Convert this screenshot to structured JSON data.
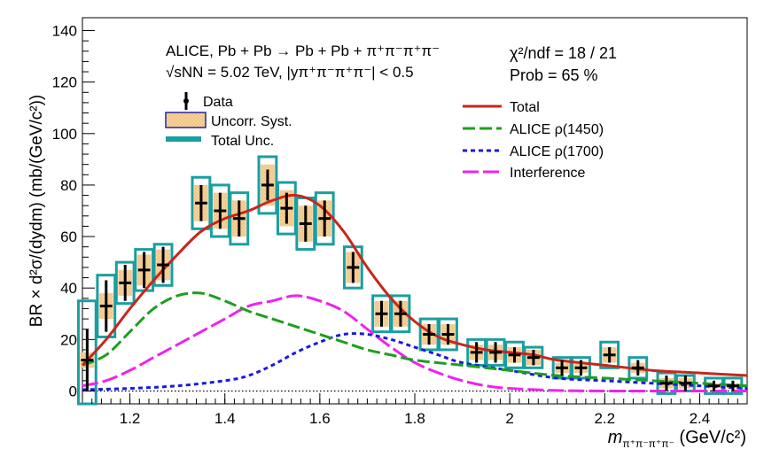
{
  "chart_data": {
    "type": "scatter",
    "title": "",
    "xlabel": "m",
    "xlabel_sub": "π⁺π⁻π⁺π⁻",
    "xlabel_unit": " (GeV/c²)",
    "ylabel": "BR × d²σ/(dydm) (mb/(GeV/c²))",
    "xlim": [
      1.1,
      2.5
    ],
    "ylim": [
      -5,
      145
    ],
    "x_ticks": [
      1.2,
      1.4,
      1.6,
      1.8,
      2.0,
      2.2,
      2.4
    ],
    "x_tick_labels": [
      "1.2",
      "1.4",
      "1.6",
      "1.8",
      "2",
      "2.2",
      "2.4"
    ],
    "y_ticks": [
      0,
      20,
      40,
      60,
      80,
      100,
      120,
      140
    ],
    "y_tick_labels": [
      "0",
      "20",
      "40",
      "60",
      "80",
      "100",
      "120",
      "140"
    ],
    "annotations": {
      "line1": "ALICE, Pb + Pb → Pb + Pb + π⁺π⁻π⁺π⁻",
      "line2": "√sNN = 5.02 TeV, |yπ⁺π⁻π⁺π⁻| < 0.5",
      "chi2": "χ²/ndf = 18 / 21",
      "prob": "Prob = 65 %"
    },
    "legend_left": [
      "Data",
      "Uncorr. Syst.",
      "Total Unc."
    ],
    "legend_right": [
      "Total",
      "ALICE ρ(1450)",
      "ALICE ρ(1700)",
      "Interference"
    ],
    "colors": {
      "total": "#c8261d",
      "rho1450": "#1e9e1e",
      "rho1700": "#1a1ae0",
      "interference": "#ee22ee",
      "total_unc": "#1a9ea0",
      "syst_fill": "#f6d29a"
    },
    "data_points": [
      {
        "x": 1.11,
        "y": 12,
        "stat": 12,
        "syst": 3,
        "tot": 23
      },
      {
        "x": 1.15,
        "y": 33,
        "stat": 10,
        "syst": 5,
        "tot": 12
      },
      {
        "x": 1.19,
        "y": 42,
        "stat": 7,
        "syst": 5,
        "tot": 8
      },
      {
        "x": 1.23,
        "y": 47,
        "stat": 7,
        "syst": 6,
        "tot": 8
      },
      {
        "x": 1.27,
        "y": 49,
        "stat": 7,
        "syst": 6,
        "tot": 8
      },
      {
        "x": 1.35,
        "y": 73,
        "stat": 7,
        "syst": 7,
        "tot": 10
      },
      {
        "x": 1.39,
        "y": 70,
        "stat": 7,
        "syst": 7,
        "tot": 10
      },
      {
        "x": 1.43,
        "y": 67,
        "stat": 7,
        "syst": 7,
        "tot": 10
      },
      {
        "x": 1.49,
        "y": 80,
        "stat": 6,
        "syst": 8,
        "tot": 11
      },
      {
        "x": 1.53,
        "y": 71,
        "stat": 6,
        "syst": 7,
        "tot": 10
      },
      {
        "x": 1.57,
        "y": 65,
        "stat": 7,
        "syst": 7,
        "tot": 10
      },
      {
        "x": 1.61,
        "y": 67,
        "stat": 7,
        "syst": 7,
        "tot": 10
      },
      {
        "x": 1.67,
        "y": 48,
        "stat": 6,
        "syst": 6,
        "tot": 8
      },
      {
        "x": 1.73,
        "y": 30,
        "stat": 5,
        "syst": 5,
        "tot": 7
      },
      {
        "x": 1.77,
        "y": 30,
        "stat": 5,
        "syst": 5,
        "tot": 7
      },
      {
        "x": 1.83,
        "y": 22,
        "stat": 4,
        "syst": 4,
        "tot": 6
      },
      {
        "x": 1.87,
        "y": 22,
        "stat": 4,
        "syst": 4,
        "tot": 6
      },
      {
        "x": 1.93,
        "y": 15,
        "stat": 4,
        "syst": 3,
        "tot": 5
      },
      {
        "x": 1.97,
        "y": 15,
        "stat": 4,
        "syst": 3,
        "tot": 5
      },
      {
        "x": 2.01,
        "y": 14,
        "stat": 3,
        "syst": 3,
        "tot": 5
      },
      {
        "x": 2.05,
        "y": 13,
        "stat": 3,
        "syst": 3,
        "tot": 4
      },
      {
        "x": 2.11,
        "y": 9,
        "stat": 3,
        "syst": 2,
        "tot": 4
      },
      {
        "x": 2.15,
        "y": 9,
        "stat": 3,
        "syst": 2,
        "tot": 4
      },
      {
        "x": 2.21,
        "y": 14,
        "stat": 3,
        "syst": 3,
        "tot": 5
      },
      {
        "x": 2.27,
        "y": 9,
        "stat": 3,
        "syst": 2,
        "tot": 4
      },
      {
        "x": 2.33,
        "y": 3,
        "stat": 3,
        "syst": 2,
        "tot": 4
      },
      {
        "x": 2.37,
        "y": 3,
        "stat": 3,
        "syst": 2,
        "tot": 3
      },
      {
        "x": 2.43,
        "y": 2,
        "stat": 2,
        "syst": 1,
        "tot": 3
      },
      {
        "x": 2.47,
        "y": 2,
        "stat": 2,
        "syst": 1,
        "tot": 3
      }
    ],
    "series": [
      {
        "name": "Total",
        "x": [
          1.1,
          1.15,
          1.2,
          1.25,
          1.3,
          1.35,
          1.4,
          1.45,
          1.5,
          1.55,
          1.6,
          1.65,
          1.7,
          1.75,
          1.8,
          1.85,
          1.9,
          1.95,
          2.0,
          2.05,
          2.1,
          2.2,
          2.3,
          2.4,
          2.5
        ],
        "y": [
          10,
          20,
          32,
          43,
          53,
          62,
          67,
          70,
          74,
          76,
          72,
          62,
          48,
          36,
          27,
          21,
          18,
          16,
          15,
          14,
          12,
          10,
          8,
          7,
          6
        ]
      },
      {
        "name": "ALICE ρ(1450)",
        "x": [
          1.1,
          1.15,
          1.2,
          1.25,
          1.3,
          1.35,
          1.4,
          1.45,
          1.5,
          1.55,
          1.6,
          1.65,
          1.7,
          1.75,
          1.8,
          1.9,
          2.0,
          2.1,
          2.2,
          2.3,
          2.4,
          2.5
        ],
        "y": [
          10,
          14,
          23,
          32,
          37,
          38,
          35,
          31,
          28,
          25,
          22,
          19,
          16,
          14,
          12,
          10,
          8,
          6,
          5,
          4,
          3,
          2
        ]
      },
      {
        "name": "ALICE ρ(1700)",
        "x": [
          1.1,
          1.2,
          1.3,
          1.4,
          1.45,
          1.5,
          1.55,
          1.6,
          1.65,
          1.7,
          1.75,
          1.8,
          1.85,
          1.9,
          2.0,
          2.1,
          2.2,
          2.3,
          2.4,
          2.5
        ],
        "y": [
          0.5,
          1,
          2,
          4,
          6,
          10,
          15,
          19,
          22,
          22,
          20,
          17,
          14,
          11,
          8,
          5,
          4,
          3,
          2,
          1
        ]
      },
      {
        "name": "Interference",
        "x": [
          1.1,
          1.15,
          1.2,
          1.25,
          1.3,
          1.35,
          1.4,
          1.45,
          1.5,
          1.55,
          1.6,
          1.65,
          1.7,
          1.75,
          1.8,
          1.85,
          1.9,
          1.95,
          2.0,
          2.1,
          2.2,
          2.3,
          2.4,
          2.5
        ],
        "y": [
          2,
          4,
          8,
          13,
          18,
          23,
          28,
          33,
          35,
          37,
          35,
          31,
          24,
          17,
          11,
          7,
          4,
          2,
          1,
          0.2,
          0,
          0,
          0,
          0
        ]
      }
    ]
  }
}
